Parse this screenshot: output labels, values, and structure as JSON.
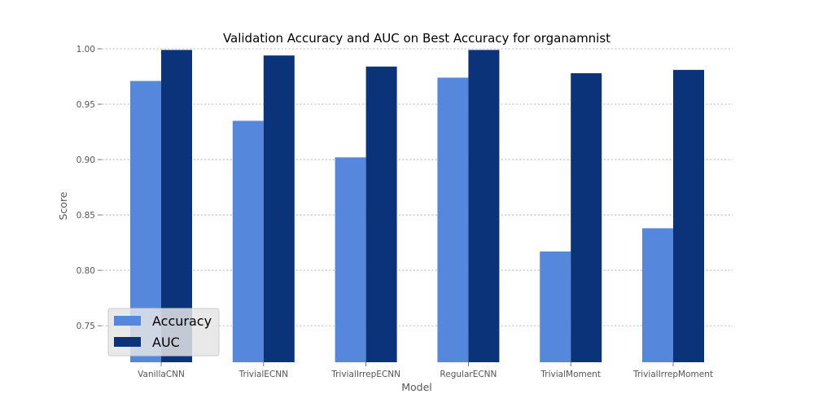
{
  "chart_data": {
    "type": "bar",
    "title": "Validation Accuracy and AUC on Best Accuracy for organamnist",
    "xlabel": "Model",
    "ylabel": "Score",
    "ylim": [
      0.717,
      1.0
    ],
    "yticks": [
      "0.75",
      "0.80",
      "0.85",
      "0.90",
      "0.95",
      "1.00"
    ],
    "grid": "horizontal",
    "legend_position": "lower-left",
    "categories": [
      "VanillaCNN",
      "TrivialECNN",
      "TrivialIrrepECNN",
      "RegularECNN",
      "TrivialMoment",
      "TrivialIrrepMoment"
    ],
    "series": [
      {
        "name": "Accuracy",
        "color": "#5588dd",
        "values": [
          0.971,
          0.935,
          0.902,
          0.974,
          0.817,
          0.838
        ]
      },
      {
        "name": "AUC",
        "color": "#0a337a",
        "values": [
          0.999,
          0.994,
          0.984,
          0.999,
          0.978,
          0.981
        ]
      }
    ]
  }
}
